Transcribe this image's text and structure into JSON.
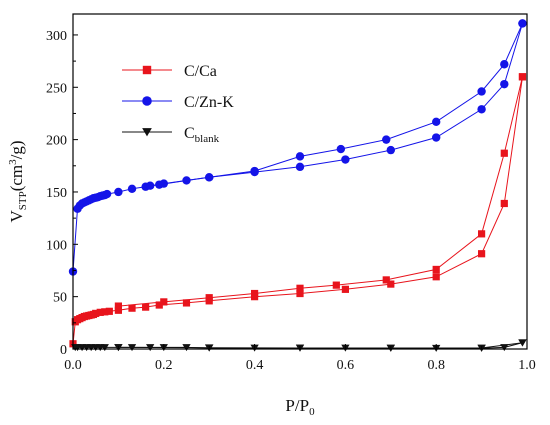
{
  "chart_data": {
    "type": "line",
    "xlabel": {
      "main": "P/P",
      "sub": "0"
    },
    "ylabel": {
      "prefix": "V",
      "sub": "STP",
      "mid": "(cm",
      "sup": "3",
      "suffix": "/g)"
    },
    "xlim": [
      0.0,
      1.0
    ],
    "ylim": [
      0,
      320
    ],
    "x_ticks": [
      0.0,
      0.2,
      0.4,
      0.6,
      0.8,
      1.0
    ],
    "x_tick_labels": [
      "0.0",
      "0.2",
      "0.4",
      "0.6",
      "0.8",
      "1.0"
    ],
    "y_ticks": [
      0,
      50,
      100,
      150,
      200,
      250,
      300
    ],
    "y_tick_labels": [
      "0",
      "50",
      "100",
      "150",
      "200",
      "250",
      "300"
    ],
    "legend_position": "top-left",
    "series": [
      {
        "name": "C/Ca",
        "label_parts": {
          "main": "C/Ca",
          "sub": ""
        },
        "color": "#e8141c",
        "marker": "square",
        "adsorption": {
          "x": [
            0.0,
            0.005,
            0.01,
            0.015,
            0.02,
            0.025,
            0.03,
            0.035,
            0.04,
            0.045,
            0.05,
            0.06,
            0.07,
            0.08,
            0.1,
            0.13,
            0.16,
            0.19,
            0.25,
            0.3,
            0.4,
            0.5,
            0.6,
            0.7,
            0.8,
            0.9,
            0.95,
            0.99
          ],
          "y": [
            5,
            26,
            28,
            29,
            30,
            31,
            31.5,
            32,
            32.5,
            33,
            34,
            35,
            35.5,
            36,
            37,
            39,
            40,
            42,
            44,
            46,
            50,
            53,
            57,
            62,
            69,
            91,
            139,
            260
          ]
        },
        "desorption": {
          "x": [
            0.99,
            0.95,
            0.9,
            0.8,
            0.69,
            0.58,
            0.5,
            0.4,
            0.3,
            0.2,
            0.1
          ],
          "y": [
            260,
            187,
            110,
            76,
            66,
            61,
            58,
            53,
            49,
            45,
            41
          ]
        }
      },
      {
        "name": "C/Zn-K",
        "label_parts": {
          "main": "C/Zn-K",
          "sub": ""
        },
        "color": "#1414e8",
        "marker": "circle",
        "adsorption": {
          "x": [
            0.0,
            0.01,
            0.015,
            0.02,
            0.025,
            0.03,
            0.035,
            0.04,
            0.045,
            0.05,
            0.055,
            0.06,
            0.065,
            0.07,
            0.075,
            0.1,
            0.13,
            0.16,
            0.19,
            0.25,
            0.3,
            0.4,
            0.5,
            0.6,
            0.7,
            0.8,
            0.9,
            0.95,
            0.99
          ],
          "y": [
            74,
            134,
            137,
            139,
            140,
            141,
            142,
            143,
            144,
            144.5,
            145,
            146,
            146.5,
            147,
            148,
            150,
            153,
            155,
            157,
            161,
            164,
            169,
            174,
            181,
            190,
            202,
            229,
            253,
            311
          ]
        },
        "desorption": {
          "x": [
            0.99,
            0.95,
            0.9,
            0.8,
            0.69,
            0.59,
            0.5,
            0.4,
            0.3,
            0.2,
            0.17
          ],
          "y": [
            311,
            272,
            246,
            217,
            200,
            191,
            184,
            170,
            164,
            158,
            156
          ]
        }
      },
      {
        "name": "Cblank",
        "label_parts": {
          "main": "C",
          "sub": "blank"
        },
        "color": "#111111",
        "marker": "triangle-down",
        "adsorption": {
          "x": [
            0.005,
            0.01,
            0.02,
            0.03,
            0.04,
            0.05,
            0.06,
            0.07,
            0.1,
            0.13,
            0.17,
            0.2,
            0.25,
            0.3,
            0.4,
            0.5,
            0.6,
            0.7,
            0.8,
            0.9,
            0.95,
            0.99
          ],
          "y": [
            1.5,
            1.5,
            1.5,
            1.5,
            1.5,
            1.5,
            1.5,
            1.5,
            1.5,
            1.5,
            1.5,
            1.5,
            1.5,
            1.0,
            1.0,
            1.0,
            1.0,
            0.8,
            0.8,
            0.8,
            1.5,
            6
          ]
        },
        "desorption": {
          "x": [
            0.99,
            0.9,
            0.7,
            0.5,
            0.3,
            0.1
          ],
          "y": [
            6,
            1.0,
            1.0,
            1.0,
            1.2,
            1.5
          ]
        }
      }
    ]
  }
}
